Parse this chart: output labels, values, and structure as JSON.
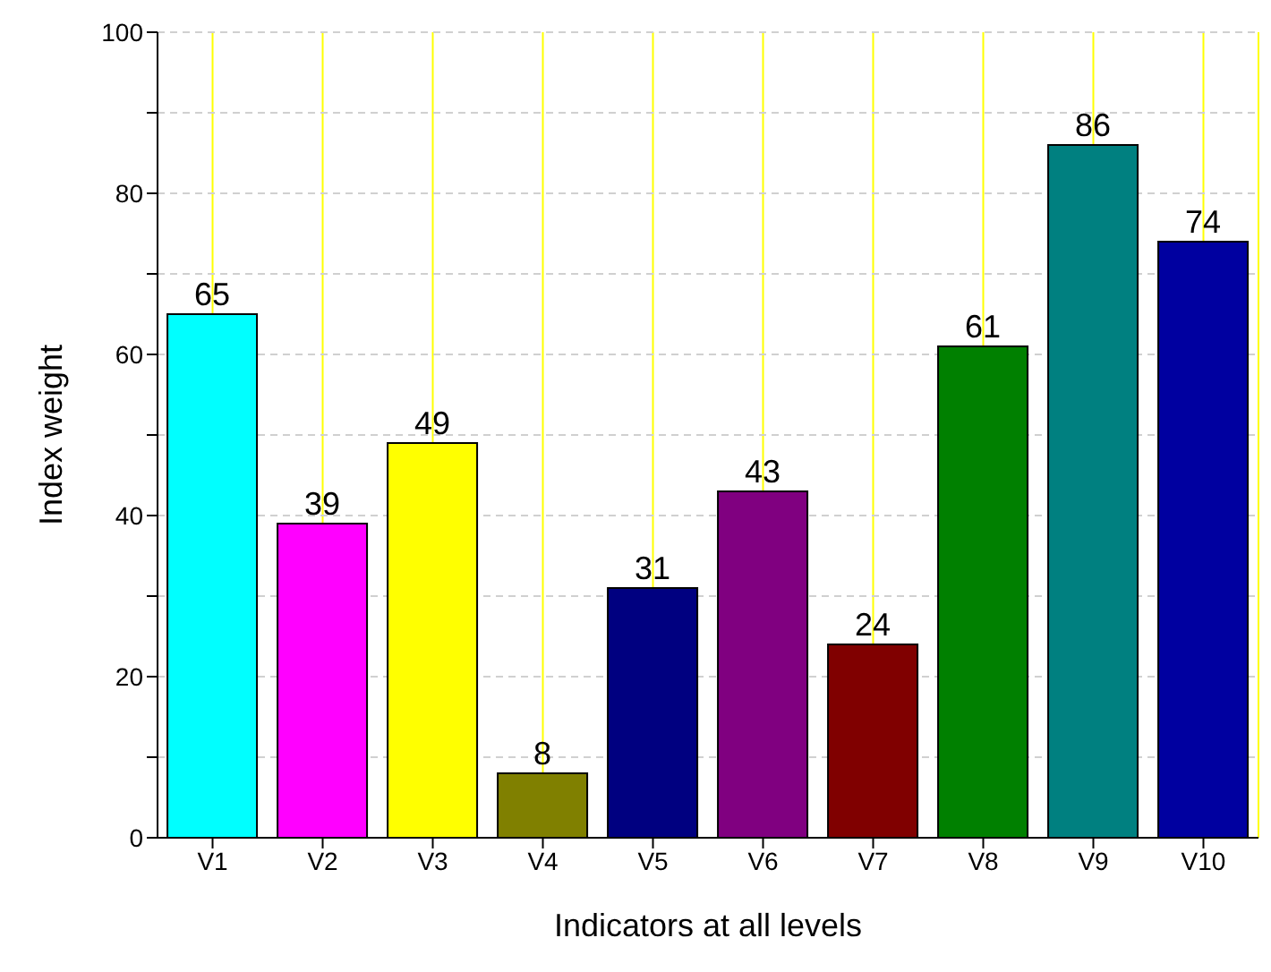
{
  "chart_data": {
    "type": "bar",
    "xlabel": "Indicators at all levels",
    "ylabel": "Index weight",
    "categories": [
      "V1",
      "V2",
      "V3",
      "V4",
      "V5",
      "V6",
      "V7",
      "V8",
      "V9",
      "V10"
    ],
    "values": [
      65,
      39,
      49,
      8,
      31,
      43,
      24,
      61,
      86,
      74
    ],
    "colors": [
      "#00ffff",
      "#ff00ff",
      "#ffff00",
      "#808000",
      "#000080",
      "#800080",
      "#800000",
      "#008000",
      "#008080",
      "#0000a0"
    ],
    "ylim": [
      0,
      100
    ],
    "yticks": [
      0,
      {
        "value": 10,
        "label": null
      },
      20,
      {
        "value": 30,
        "label": null
      },
      40,
      {
        "value": 50,
        "label": null
      },
      60,
      {
        "value": 70,
        "label": null
      },
      80,
      {
        "value": 90,
        "label": null
      },
      100
    ],
    "grid": true,
    "data_labels": true
  }
}
